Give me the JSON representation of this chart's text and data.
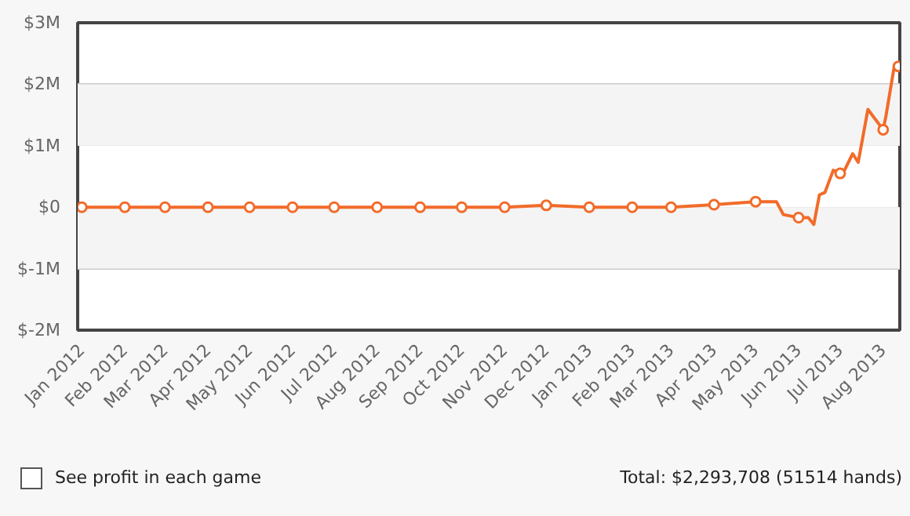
{
  "chart_data": {
    "type": "line",
    "grid": "y",
    "line_style": "solid",
    "xlim": [
      "2011-12-29",
      "2013-08-13"
    ],
    "xticks": [
      {
        "value": "2012-01-01",
        "label": "Jan 2012"
      },
      {
        "value": "2012-02-01",
        "label": "Feb 2012"
      },
      {
        "value": "2012-03-01",
        "label": "Mar 2012"
      },
      {
        "value": "2012-04-01",
        "label": "Apr 2012"
      },
      {
        "value": "2012-05-01",
        "label": "May 2012"
      },
      {
        "value": "2012-06-01",
        "label": "Jun 2012"
      },
      {
        "value": "2012-07-01",
        "label": "Jul 2012"
      },
      {
        "value": "2012-08-01",
        "label": "Aug 2012"
      },
      {
        "value": "2012-09-01",
        "label": "Sep 2012"
      },
      {
        "value": "2012-10-01",
        "label": "Oct 2012"
      },
      {
        "value": "2012-11-01",
        "label": "Nov 2012"
      },
      {
        "value": "2012-12-01",
        "label": "Dec 2012"
      },
      {
        "value": "2013-01-01",
        "label": "Jan 2013"
      },
      {
        "value": "2013-02-01",
        "label": "Feb 2013"
      },
      {
        "value": "2013-03-01",
        "label": "Mar 2013"
      },
      {
        "value": "2013-04-01",
        "label": "Apr 2013"
      },
      {
        "value": "2013-05-01",
        "label": "May 2013"
      },
      {
        "value": "2013-06-01",
        "label": "Jun 2013"
      },
      {
        "value": "2013-07-01",
        "label": "Jul 2013"
      },
      {
        "value": "2013-08-01",
        "label": "Aug 2013"
      }
    ],
    "ylim": [
      -2000000,
      3000000
    ],
    "yticks": [
      {
        "value": -2000000,
        "label": "$-2M"
      },
      {
        "value": -1000000,
        "label": "$-1M"
      },
      {
        "value": 0,
        "label": "$0"
      },
      {
        "value": 1000000,
        "label": "$1M"
      },
      {
        "value": 2000000,
        "label": "$2M"
      },
      {
        "value": 3000000,
        "label": "$3M"
      }
    ],
    "series": [
      {
        "color": "#f26b2a",
        "marker": "none",
        "x": [
          "2012-01-01",
          "2012-02-01",
          "2012-03-01",
          "2012-04-01",
          "2012-05-01",
          "2012-06-01",
          "2012-07-01",
          "2012-08-01",
          "2012-09-01",
          "2012-10-01",
          "2012-11-01",
          "2012-12-01",
          "2013-01-01",
          "2013-02-01",
          "2013-03-01",
          "2013-04-01",
          "2013-05-01",
          "2013-05-16",
          "2013-05-21",
          "2013-06-01",
          "2013-06-08",
          "2013-06-12",
          "2013-06-16",
          "2013-06-20",
          "2013-06-26",
          "2013-07-01",
          "2013-07-03",
          "2013-07-10",
          "2013-07-14",
          "2013-07-21",
          "2013-08-01",
          "2013-08-03",
          "2013-08-09",
          "2013-08-12"
        ],
        "values": [
          0,
          0,
          0,
          0,
          0,
          0,
          0,
          0,
          0,
          0,
          0,
          30000,
          0,
          0,
          0,
          40000,
          90000,
          90000,
          -120000,
          -170000,
          -170000,
          -280000,
          200000,
          240000,
          600000,
          550000,
          550000,
          870000,
          730000,
          1590000,
          1260000,
          1480000,
          2290000,
          2290000
        ]
      },
      {
        "type": "scatter",
        "color": "#f26b2a",
        "marker": "circle",
        "x": [
          "2012-01-01",
          "2012-02-01",
          "2012-03-01",
          "2012-04-01",
          "2012-05-01",
          "2012-06-01",
          "2012-07-01",
          "2012-08-01",
          "2012-09-01",
          "2012-10-01",
          "2012-11-01",
          "2012-12-01",
          "2013-01-01",
          "2013-02-01",
          "2013-03-01",
          "2013-04-01",
          "2013-05-01",
          "2013-06-01",
          "2013-07-01",
          "2013-08-01",
          "2013-08-12"
        ],
        "values": [
          0,
          0,
          0,
          0,
          0,
          0,
          0,
          0,
          0,
          0,
          0,
          30000,
          0,
          0,
          0,
          40000,
          90000,
          -170000,
          550000,
          1260000,
          2290000
        ]
      }
    ],
    "annotations": [
      "See profit in each game",
      "Total: $2,293,708 (51514 hands)"
    ]
  }
}
